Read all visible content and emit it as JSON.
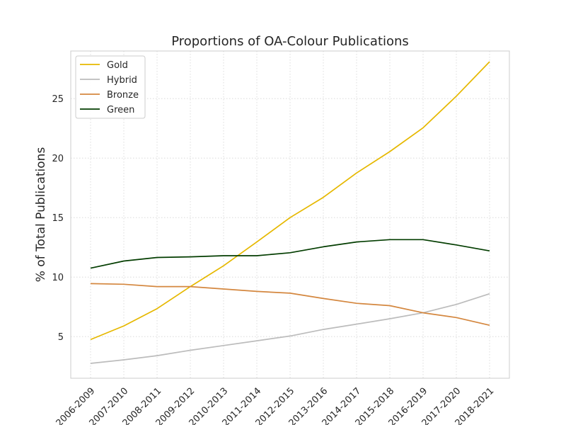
{
  "chart_data": {
    "type": "line",
    "title": "Proportions of OA-Colour Publications",
    "xlabel": "",
    "ylabel": "% of Total Publications",
    "categories": [
      "2006-2009",
      "2007-2010",
      "2008-2011",
      "2009-2012",
      "2010-2013",
      "2011-2014",
      "2012-2015",
      "2013-2016",
      "2014-2017",
      "2015-2018",
      "2016-2019",
      "2017-2020",
      "2018-2021"
    ],
    "ylim": [
      1.5,
      29.0
    ],
    "yticks": [
      5,
      10,
      15,
      20,
      25
    ],
    "grid": true,
    "legend_position": "top-left",
    "series": [
      {
        "name": "Gold",
        "color": "#e6b800",
        "values": [
          4.75,
          5.9,
          7.35,
          9.2,
          10.95,
          12.95,
          15.0,
          16.7,
          18.75,
          20.55,
          22.55,
          25.2,
          28.1
        ]
      },
      {
        "name": "Hybrid",
        "color": "#bcbcbc",
        "values": [
          2.75,
          3.05,
          3.4,
          3.85,
          4.25,
          4.65,
          5.05,
          5.6,
          6.05,
          6.5,
          7.0,
          7.7,
          8.6
        ]
      },
      {
        "name": "Bronze",
        "color": "#d4873f",
        "values": [
          9.45,
          9.4,
          9.2,
          9.2,
          9.0,
          8.8,
          8.65,
          8.2,
          7.8,
          7.6,
          7.0,
          6.6,
          5.95
        ]
      },
      {
        "name": "Green",
        "color": "#033d00",
        "values": [
          10.75,
          11.35,
          11.65,
          11.7,
          11.8,
          11.8,
          12.05,
          12.55,
          12.95,
          13.15,
          13.15,
          12.7,
          12.2
        ]
      }
    ]
  }
}
